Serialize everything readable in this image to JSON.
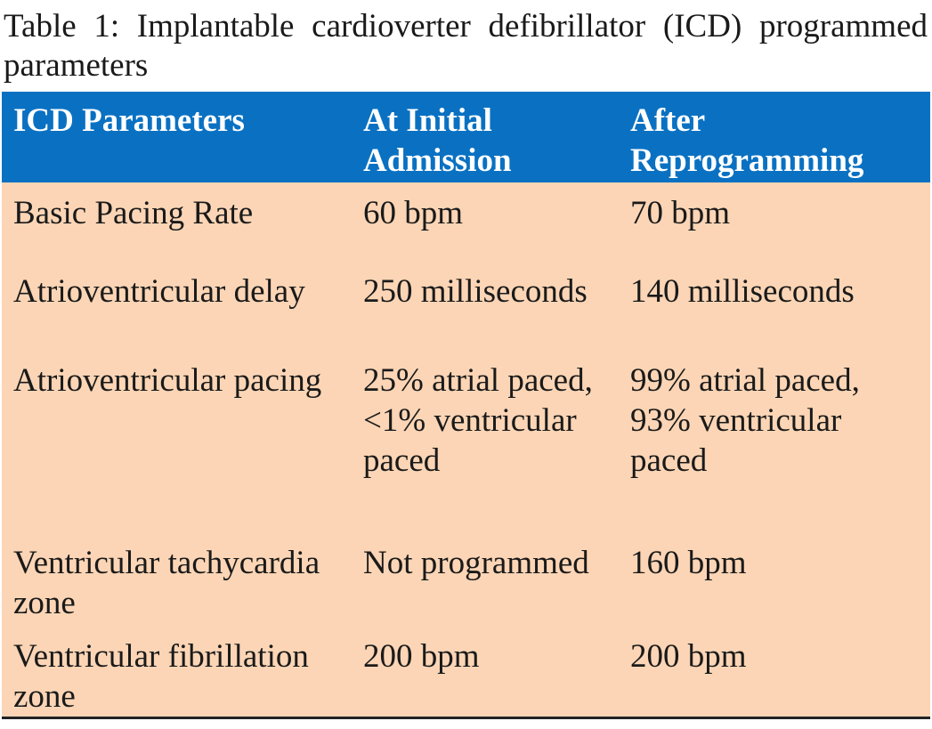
{
  "caption": "Table 1: Implantable cardioverter defibrillator (ICD) programmed parameters",
  "table": {
    "header": [
      "ICD Parameters",
      "At Initial Admission",
      "After Reprogramming"
    ],
    "rows": [
      [
        "Basic Pacing Rate",
        "60 bpm",
        "70 bpm"
      ],
      [
        "Atrioventricular delay",
        "250 milliseconds",
        "140 milliseconds"
      ],
      [
        "Atrioventricular pacing",
        "25% atrial paced, <1% ventricular paced",
        "99% atrial paced, 93% ventricular paced"
      ],
      [
        "Ventricular tachycardia zone",
        "Not programmed",
        "160 bpm"
      ],
      [
        "Ventricular fibrillation zone",
        "200 bpm",
        "200 bpm"
      ]
    ]
  }
}
